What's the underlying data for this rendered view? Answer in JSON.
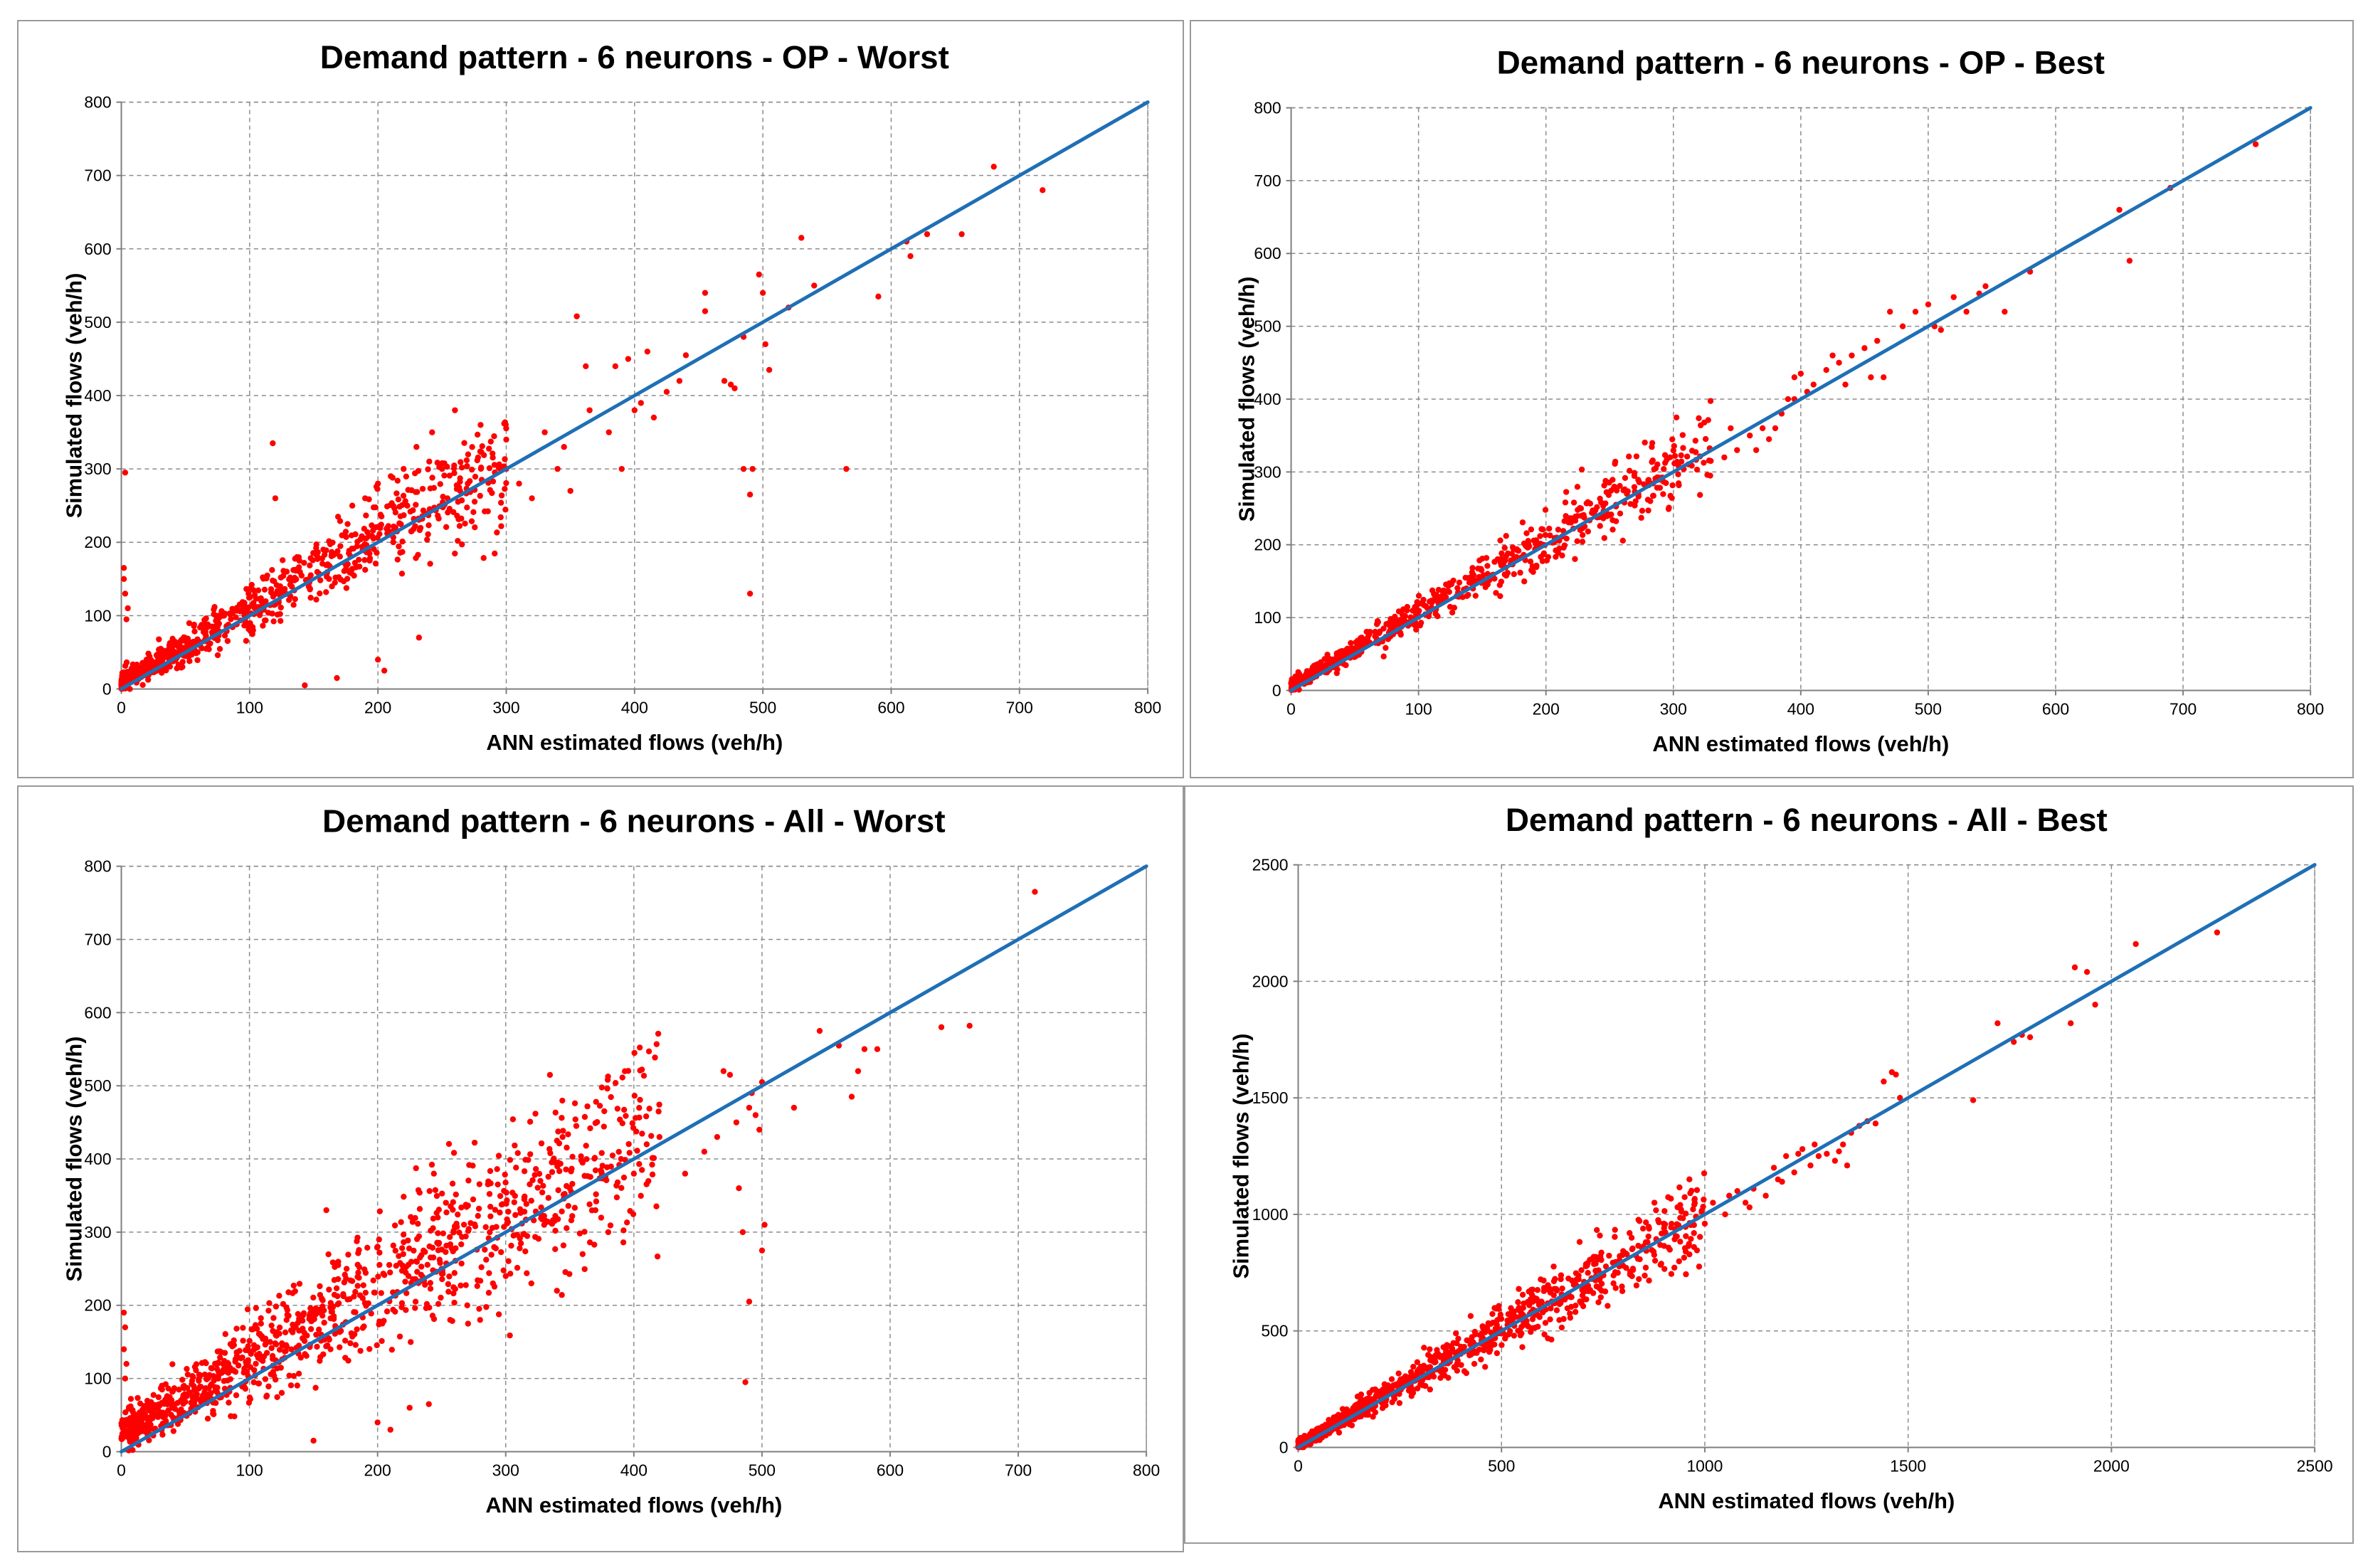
{
  "chart_data": [
    {
      "type": "scatter",
      "title": "Demand pattern - 6 neurons - OP - Worst",
      "xlabel": "ANN estimated flows (veh/h)",
      "ylabel": "Simulated flows (veh/h)",
      "xlim": [
        0,
        800
      ],
      "ylim": [
        0,
        800
      ],
      "xticks": [
        "0",
        "100",
        "200",
        "300",
        "400",
        "500",
        "600",
        "700",
        "800"
      ],
      "yticks": [
        "0",
        "100",
        "200",
        "300",
        "400",
        "500",
        "600",
        "700",
        "800"
      ],
      "grid": true,
      "legend": "none",
      "line": {
        "name": "y = x",
        "x": [
          0,
          800
        ],
        "y": [
          0,
          800
        ],
        "color": "#1f6fb5"
      },
      "point_color": "#ff0000",
      "series": [
        {
          "name": "cluster",
          "generated": {
            "count": 820,
            "xmin": 0,
            "xmax": 300,
            "skew": 1.6,
            "bias": 9,
            "sd": 6,
            "sdk": 0.12,
            "seed": 11
          }
        },
        {
          "name": "points",
          "points": [
            [
              3,
              295
            ],
            [
              2,
              165
            ],
            [
              2,
              150
            ],
            [
              3,
              130
            ],
            [
              5,
              110
            ],
            [
              4,
              95
            ],
            [
              118,
              335
            ],
            [
              143,
              5
            ],
            [
              168,
              15
            ],
            [
              200,
              40
            ],
            [
              205,
              25
            ],
            [
              232,
              70
            ],
            [
              355,
              508
            ],
            [
              362,
              440
            ],
            [
              385,
              440
            ],
            [
              395,
              450
            ],
            [
              405,
              390
            ],
            [
              410,
              460
            ],
            [
              425,
              405
            ],
            [
              435,
              420
            ],
            [
              440,
              455
            ],
            [
              455,
              515
            ],
            [
              455,
              540
            ],
            [
              470,
              420
            ],
            [
              475,
              415
            ],
            [
              478,
              410
            ],
            [
              485,
              480
            ],
            [
              485,
              300
            ],
            [
              490,
              265
            ],
            [
              492,
              300
            ],
            [
              490,
              130
            ],
            [
              497,
              565
            ],
            [
              500,
              540
            ],
            [
              502,
              470
            ],
            [
              505,
              435
            ],
            [
              520,
              520
            ],
            [
              530,
              615
            ],
            [
              540,
              550
            ],
            [
              565,
              300
            ],
            [
              590,
              535
            ],
            [
              612,
              610
            ],
            [
              615,
              590
            ],
            [
              628,
              620
            ],
            [
              655,
              620
            ],
            [
              680,
              712
            ],
            [
              718,
              680
            ],
            [
              300,
              300
            ],
            [
              310,
              280
            ],
            [
              320,
              260
            ],
            [
              340,
              300
            ],
            [
              350,
              270
            ],
            [
              365,
              380
            ],
            [
              380,
              350
            ],
            [
              330,
              350
            ],
            [
              345,
              330
            ],
            [
              390,
              300
            ],
            [
              400,
              380
            ],
            [
              415,
              370
            ],
            [
              260,
              380
            ],
            [
              280,
              360
            ],
            [
              300,
              340
            ],
            [
              250,
              300
            ],
            [
              270,
              280
            ],
            [
              230,
              330
            ],
            [
              240,
              310
            ],
            [
              220,
              300
            ],
            [
              210,
              290
            ],
            [
              200,
              280
            ],
            [
              190,
              260
            ],
            [
              180,
              250
            ],
            [
              120,
              260
            ]
          ]
        }
      ]
    },
    {
      "type": "scatter",
      "title": "Demand pattern - 6 neurons - OP - Best",
      "xlabel": "ANN estimated flows (veh/h)",
      "ylabel": "Simulated flows (veh/h)",
      "xlim": [
        0,
        800
      ],
      "ylim": [
        0,
        800
      ],
      "xticks": [
        "0",
        "100",
        "200",
        "300",
        "400",
        "500",
        "600",
        "700",
        "800"
      ],
      "yticks": [
        "0",
        "100",
        "200",
        "300",
        "400",
        "500",
        "600",
        "700",
        "800"
      ],
      "grid": true,
      "legend": "none",
      "line": {
        "name": "y = x",
        "x": [
          0,
          800
        ],
        "y": [
          0,
          800
        ],
        "color": "#1f6fb5"
      },
      "point_color": "#ff0000",
      "series": [
        {
          "name": "cluster",
          "generated": {
            "count": 720,
            "xmin": 0,
            "xmax": 330,
            "skew": 1.6,
            "bias": 7,
            "sd": 4,
            "sdk": 0.07,
            "seed": 23
          }
        },
        {
          "name": "points",
          "points": [
            [
              340,
              320
            ],
            [
              350,
              330
            ],
            [
              360,
              350
            ],
            [
              370,
              360
            ],
            [
              375,
              345
            ],
            [
              385,
              380
            ],
            [
              390,
              400
            ],
            [
              395,
              430
            ],
            [
              400,
              435
            ],
            [
              405,
              410
            ],
            [
              420,
              440
            ],
            [
              430,
              450
            ],
            [
              440,
              460
            ],
            [
              450,
              470
            ],
            [
              460,
              480
            ],
            [
              465,
              430
            ],
            [
              470,
              520
            ],
            [
              480,
              500
            ],
            [
              490,
              520
            ],
            [
              500,
              530
            ],
            [
              505,
              500
            ],
            [
              510,
              495
            ],
            [
              520,
              540
            ],
            [
              530,
              520
            ],
            [
              540,
              545
            ],
            [
              545,
              555
            ],
            [
              560,
              520
            ],
            [
              580,
              575
            ],
            [
              650,
              660
            ],
            [
              658,
              590
            ],
            [
              690,
              690
            ],
            [
              757,
              750
            ],
            [
              345,
              360
            ],
            [
              365,
              330
            ],
            [
              410,
              420
            ],
            [
              435,
              420
            ],
            [
              455,
              430
            ],
            [
              380,
              360
            ],
            [
              395,
              400
            ],
            [
              425,
              460
            ]
          ]
        }
      ]
    },
    {
      "type": "scatter",
      "title": "Demand pattern - 6 neurons - All - Worst",
      "xlabel": "ANN estimated flows (veh/h)",
      "ylabel": "Simulated flows (veh/h)",
      "xlim": [
        0,
        800
      ],
      "ylim": [
        0,
        800
      ],
      "xticks": [
        "0",
        "100",
        "200",
        "300",
        "400",
        "500",
        "600",
        "700",
        "800"
      ],
      "yticks": [
        "0",
        "100",
        "200",
        "300",
        "400",
        "500",
        "600",
        "700",
        "800"
      ],
      "grid": true,
      "legend": "none",
      "line": {
        "name": "y = x",
        "x": [
          0,
          800
        ],
        "y": [
          0,
          800
        ],
        "color": "#1f6fb5"
      },
      "point_color": "#ff0000",
      "series": [
        {
          "name": "cluster",
          "generated": {
            "count": 1100,
            "xmin": 0,
            "xmax": 420,
            "skew": 1.4,
            "bias": 25,
            "sd": 12,
            "sdk": 0.15,
            "seed": 37
          }
        },
        {
          "name": "points",
          "points": [
            [
              2,
              190
            ],
            [
              3,
              170
            ],
            [
              2,
              140
            ],
            [
              4,
              120
            ],
            [
              3,
              100
            ],
            [
              160,
              330
            ],
            [
              150,
              15
            ],
            [
              200,
              40
            ],
            [
              210,
              30
            ],
            [
              240,
              65
            ],
            [
              225,
              60
            ],
            [
              340,
              425
            ],
            [
              360,
              395
            ],
            [
              375,
              380
            ],
            [
              390,
              400
            ],
            [
              400,
              380
            ],
            [
              410,
              420
            ],
            [
              420,
              430
            ],
            [
              440,
              380
            ],
            [
              455,
              410
            ],
            [
              465,
              430
            ],
            [
              470,
              520
            ],
            [
              475,
              515
            ],
            [
              480,
              450
            ],
            [
              482,
              360
            ],
            [
              485,
              300
            ],
            [
              490,
              205
            ],
            [
              487,
              95
            ],
            [
              490,
              470
            ],
            [
              492,
              490
            ],
            [
              495,
              460
            ],
            [
              498,
              440
            ],
            [
              500,
              505
            ],
            [
              502,
              310
            ],
            [
              500,
              275
            ],
            [
              525,
              470
            ],
            [
              545,
              575
            ],
            [
              560,
              555
            ],
            [
              570,
              485
            ],
            [
              575,
              520
            ],
            [
              580,
              550
            ],
            [
              590,
              550
            ],
            [
              640,
              580
            ],
            [
              662,
              582
            ],
            [
              713,
              765
            ],
            [
              350,
              360
            ],
            [
              370,
              330
            ],
            [
              380,
              300
            ],
            [
              360,
              270
            ],
            [
              330,
              310
            ],
            [
              300,
              240
            ],
            [
              320,
              230
            ],
            [
              340,
              220
            ],
            [
              270,
              200
            ],
            [
              280,
              180
            ],
            [
              290,
              230
            ],
            [
              250,
              250
            ],
            [
              230,
              260
            ],
            [
              220,
              270
            ],
            [
              200,
              280
            ]
          ]
        }
      ]
    },
    {
      "type": "scatter",
      "title": "Demand pattern - 6 neurons - All - Best",
      "xlabel": "ANN estimated flows (veh/h)",
      "ylabel": "Simulated flows (veh/h)",
      "xlim": [
        0,
        2500
      ],
      "ylim": [
        0,
        2500
      ],
      "xticks": [
        "0",
        "500",
        "1000",
        "1500",
        "2000",
        "2500"
      ],
      "yticks": [
        "0",
        "500",
        "1000",
        "1500",
        "2000",
        "2500"
      ],
      "grid": true,
      "legend": "none",
      "line": {
        "name": "y = x",
        "x": [
          0,
          2500
        ],
        "y": [
          0,
          2500
        ],
        "color": "#1f6fb5"
      },
      "point_color": "#ff0000",
      "series": [
        {
          "name": "cluster",
          "generated": {
            "count": 1050,
            "xmin": 0,
            "xmax": 1000,
            "skew": 1.7,
            "bias": 10,
            "sd": 10,
            "sdk": 0.08,
            "seed": 53
          }
        },
        {
          "name": "points",
          "points": [
            [
              1020,
              1050
            ],
            [
              1050,
              1000
            ],
            [
              1080,
              1100
            ],
            [
              1100,
              1050
            ],
            [
              1120,
              1110
            ],
            [
              1150,
              1080
            ],
            [
              1170,
              1200
            ],
            [
              1180,
              1150
            ],
            [
              1200,
              1250
            ],
            [
              1220,
              1180
            ],
            [
              1240,
              1280
            ],
            [
              1260,
              1210
            ],
            [
              1280,
              1250
            ],
            [
              1300,
              1260
            ],
            [
              1320,
              1230
            ],
            [
              1340,
              1300
            ],
            [
              1350,
              1210
            ],
            [
              1360,
              1350
            ],
            [
              1380,
              1380
            ],
            [
              1400,
              1400
            ],
            [
              1420,
              1390
            ],
            [
              1440,
              1570
            ],
            [
              1460,
              1610
            ],
            [
              1470,
              1600
            ],
            [
              1480,
              1500
            ],
            [
              1660,
              1490
            ],
            [
              1720,
              1820
            ],
            [
              1760,
              1740
            ],
            [
              1780,
              1770
            ],
            [
              1800,
              1760
            ],
            [
              1900,
              1820
            ],
            [
              1910,
              2060
            ],
            [
              1940,
              2040
            ],
            [
              1960,
              1900
            ],
            [
              2060,
              2160
            ],
            [
              2260,
              2210
            ],
            [
              1060,
              1080
            ],
            [
              1110,
              1030
            ],
            [
              1190,
              1140
            ],
            [
              1230,
              1260
            ],
            [
              1270,
              1300
            ],
            [
              1330,
              1270
            ]
          ]
        }
      ]
    }
  ]
}
